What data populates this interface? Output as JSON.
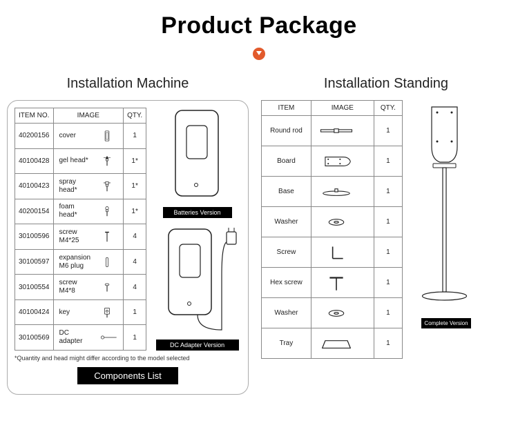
{
  "title": "Product Package",
  "left": {
    "heading": "Installation Machine",
    "headers": {
      "item": "ITEM NO.",
      "image": "IMAGE",
      "qty": "QTY."
    },
    "rows": [
      {
        "itemno": "40200156",
        "name": "cover",
        "qty": "1",
        "icon": "cover"
      },
      {
        "itemno": "40100428",
        "name": "gel head*",
        "qty": "1*",
        "icon": "gelhead"
      },
      {
        "itemno": "40100423",
        "name": "spray head*",
        "qty": "1*",
        "icon": "sprayhead"
      },
      {
        "itemno": "40200154",
        "name": "foam head*",
        "qty": "1*",
        "icon": "foamhead"
      },
      {
        "itemno": "30100596",
        "name": "screw\nM4*25",
        "qty": "4",
        "icon": "screwlong"
      },
      {
        "itemno": "30100597",
        "name": "expansion\nM6 plug",
        "qty": "4",
        "icon": "plug"
      },
      {
        "itemno": "30100554",
        "name": "screw\nM4*8",
        "qty": "4",
        "icon": "screwshort"
      },
      {
        "itemno": "40100424",
        "name": "key",
        "qty": "1",
        "icon": "key"
      },
      {
        "itemno": "30100569",
        "name": "DC adapter",
        "qty": "1",
        "icon": "adapter"
      }
    ],
    "note": "*Quantity and head might differ according to the model selected",
    "footer_label": "Components List",
    "diag_labels": {
      "batteries": "Batteries Version",
      "dc": "DC Adapter Version"
    }
  },
  "right": {
    "heading": "Installation Standing",
    "headers": {
      "item": "ITEM",
      "image": "IMAGE",
      "qty": "QTY."
    },
    "rows": [
      {
        "name": "Round rod",
        "qty": "1",
        "icon": "rod"
      },
      {
        "name": "Board",
        "qty": "1",
        "icon": "board"
      },
      {
        "name": "Base",
        "qty": "1",
        "icon": "base"
      },
      {
        "name": "Washer",
        "qty": "1",
        "icon": "washer"
      },
      {
        "name": "Screw",
        "qty": "1",
        "icon": "lscrew"
      },
      {
        "name": "Hex screw",
        "qty": "1",
        "icon": "hexscrew"
      },
      {
        "name": "Washer",
        "qty": "1",
        "icon": "washer"
      },
      {
        "name": "Tray",
        "qty": "1",
        "icon": "tray"
      }
    ],
    "stand_label": "Complete Version"
  },
  "colors": {
    "accent": "#e25a2c",
    "border": "#888888",
    "text": "#222222",
    "label_bg": "#000000",
    "label_fg": "#ffffff",
    "bg": "#ffffff"
  }
}
